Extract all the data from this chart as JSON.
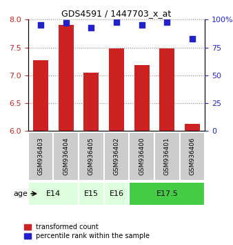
{
  "title": "GDS4591 / 1447703_x_at",
  "samples": [
    "GSM936403",
    "GSM936404",
    "GSM936405",
    "GSM936402",
    "GSM936400",
    "GSM936401",
    "GSM936406"
  ],
  "bar_values": [
    7.27,
    7.9,
    7.05,
    7.48,
    7.18,
    7.48,
    6.13
  ],
  "percentile_values": [
    95,
    97,
    93,
    98,
    95,
    98,
    83
  ],
  "ylim_left": [
    6,
    8
  ],
  "ylim_right": [
    0,
    100
  ],
  "yticks_left": [
    6,
    6.5,
    7,
    7.5,
    8
  ],
  "yticks_right": [
    0,
    25,
    50,
    75,
    100
  ],
  "yticklabels_right": [
    "0",
    "25",
    "50",
    "75",
    "100%"
  ],
  "bar_color": "#cc2222",
  "dot_color": "#2222cc",
  "bar_width": 0.6,
  "age_groups": [
    {
      "label": "E14",
      "start": 0,
      "end": 2,
      "color": "#ccffcc"
    },
    {
      "label": "E15",
      "start": 2,
      "end": 3,
      "color": "#ccffcc"
    },
    {
      "label": "E16",
      "start": 3,
      "end": 4,
      "color": "#ccffcc"
    },
    {
      "label": "E17.5",
      "start": 4,
      "end": 7,
      "color": "#44dd44"
    }
  ],
  "age_group_facecolors": [
    "#ddffdd",
    "#ddffdd",
    "#ddffdd",
    "#44cc44"
  ],
  "sample_box_color": "#cccccc",
  "grid_color": "#888888",
  "legend_labels": [
    "transformed count",
    "percentile rank within the sample"
  ],
  "legend_colors": [
    "#cc2222",
    "#2222cc"
  ]
}
